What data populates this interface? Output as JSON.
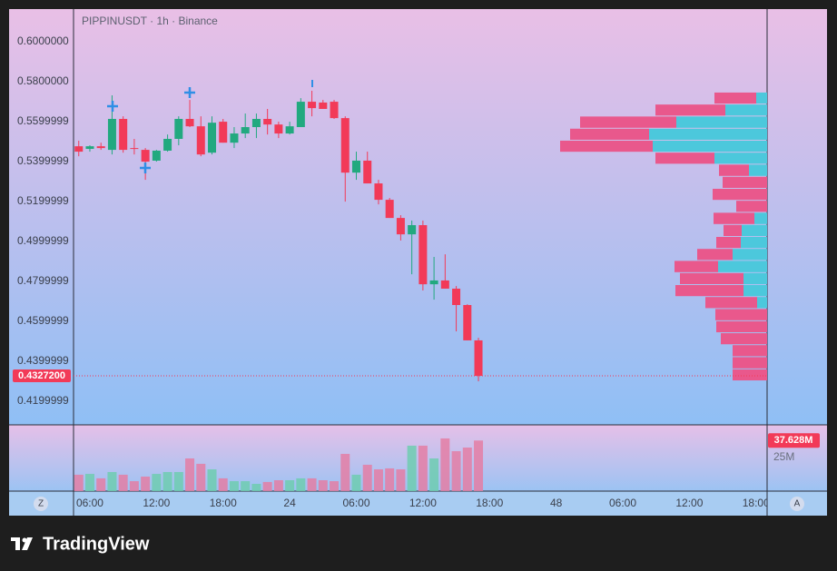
{
  "chart_data": {
    "type": "candlestick",
    "title": "PIPPINUSDT · 1h · Binance",
    "x": [
      5,
      6,
      7,
      8,
      9,
      10,
      11,
      12,
      13,
      14,
      15,
      16,
      17,
      18,
      19,
      20,
      21,
      22,
      23,
      24,
      25,
      26,
      27,
      28,
      29,
      30,
      31,
      32,
      33,
      34,
      35,
      36,
      37,
      38,
      39,
      40,
      41
    ],
    "open": [
      0.5477,
      0.5464,
      0.5477,
      0.5459,
      0.5614,
      0.5468,
      0.5459,
      0.5405,
      0.5455,
      0.5514,
      0.5614,
      0.5577,
      0.5445,
      0.56,
      0.5495,
      0.5541,
      0.5573,
      0.5614,
      0.5586,
      0.5541,
      0.5573,
      0.57,
      0.5696,
      0.57,
      0.5618,
      0.5345,
      0.5405,
      0.5291,
      0.5209,
      0.5118,
      0.5036,
      0.5082,
      0.4786,
      0.4805,
      0.4764,
      0.4682,
      0.4505
    ],
    "high": [
      0.5505,
      0.5482,
      0.5495,
      0.5732,
      0.5627,
      0.5514,
      0.5468,
      0.5459,
      0.5536,
      0.5627,
      0.5709,
      0.5627,
      0.5627,
      0.5614,
      0.5573,
      0.5641,
      0.5641,
      0.5664,
      0.56,
      0.56,
      0.5718,
      0.5755,
      0.5709,
      0.5709,
      0.5627,
      0.545,
      0.545,
      0.5309,
      0.5218,
      0.5132,
      0.5105,
      0.5105,
      0.4923,
      0.4936,
      0.4777,
      0.4686,
      0.4518
    ],
    "low": [
      0.5427,
      0.545,
      0.5459,
      0.5436,
      0.5445,
      0.5436,
      0.5309,
      0.54,
      0.545,
      0.5482,
      0.5573,
      0.5427,
      0.5436,
      0.5495,
      0.5468,
      0.5518,
      0.5518,
      0.5536,
      0.5518,
      0.5536,
      0.5573,
      0.5627,
      0.5664,
      0.5614,
      0.52,
      0.5309,
      0.5291,
      0.5186,
      0.5118,
      0.5005,
      0.4836,
      0.4755,
      0.4709,
      0.4764,
      0.455,
      0.4505,
      0.43
    ],
    "close": [
      0.545,
      0.5477,
      0.5468,
      0.5614,
      0.5459,
      0.5464,
      0.54,
      0.5455,
      0.5514,
      0.5614,
      0.5577,
      0.5436,
      0.5595,
      0.5495,
      0.5541,
      0.5573,
      0.5614,
      0.5586,
      0.5541,
      0.5577,
      0.57,
      0.5668,
      0.5664,
      0.5618,
      0.5345,
      0.5405,
      0.5291,
      0.5209,
      0.5118,
      0.5036,
      0.5082,
      0.4786,
      0.4805,
      0.4764,
      0.4682,
      0.4505,
      0.43272
    ],
    "colors": {
      "up": "#22a97f",
      "down": "#f23a58"
    },
    "xlim": [
      4.53,
      67.0
    ],
    "xticks": [
      {
        "value": 6,
        "label": "06:00"
      },
      {
        "value": 12,
        "label": "12:00"
      },
      {
        "value": 18,
        "label": "18:00"
      },
      24,
      {
        "value": 30,
        "label": "06:00"
      },
      {
        "value": 36,
        "label": "12:00"
      },
      {
        "value": 42,
        "label": "18:00"
      },
      48,
      {
        "value": 54,
        "label": "06:00"
      },
      {
        "value": 60,
        "label": "12:00"
      },
      {
        "value": 66,
        "label": "18:00"
      }
    ],
    "ylim": [
      0.4082,
      0.6164
    ],
    "yticks": [
      {
        "value": 0.6,
        "label": "0.6000000"
      },
      {
        "value": 0.58,
        "label": "0.5800000"
      },
      0.5599999,
      0.5399999,
      0.5199999,
      0.4999999,
      0.4799999,
      0.4599999,
      0.4399999,
      0.4199999
    ],
    "grid": false,
    "last_price": {
      "value": 0.43272,
      "label": "0.4327200"
    },
    "volume": {
      "values": [
        12.2,
        12.8,
        9.5,
        14.2,
        12.2,
        7.4,
        10.8,
        12.8,
        14.2,
        14.2,
        24.3,
        20.3,
        16.2,
        9.5,
        7.4,
        7.4,
        5.4,
        6.8,
        8.1,
        8.1,
        9.5,
        9.5,
        8.1,
        7.4,
        27.7,
        12.2,
        19.6,
        16.2,
        16.9,
        16.2,
        33.8,
        33.8,
        24.3,
        39.2,
        29.7,
        32.4,
        37.628
      ],
      "ylim": [
        0,
        49.3
      ],
      "yticks": [
        {
          "value": 25,
          "label": "25M"
        }
      ],
      "last": {
        "value": 37.628,
        "label": "37.628M"
      },
      "colors": {
        "up": "#6fcdb0",
        "down": "#e47ea5"
      }
    },
    "volume_profile": {
      "bins": [
        0.43,
        0.436,
        0.4421,
        0.4481,
        0.4541,
        0.4601,
        0.4662,
        0.4722,
        0.4782,
        0.4842,
        0.4903,
        0.4963,
        0.5023,
        0.5083,
        0.5144,
        0.5204,
        0.5264,
        0.5324,
        0.5385,
        0.5445,
        0.5505,
        0.5565,
        0.5626,
        0.5686,
        0.5746
      ],
      "down": [
        38,
        38,
        38,
        51,
        56,
        57,
        57,
        75,
        70,
        48,
        39,
        27,
        20,
        45,
        34,
        60,
        49,
        33,
        65,
        102,
        87,
        106,
        77,
        46
      ],
      "up": [
        0,
        0,
        0,
        0,
        0,
        0,
        11,
        26,
        26,
        54,
        38,
        29,
        28,
        14,
        0,
        0,
        0,
        20,
        58,
        126,
        130,
        100,
        46,
        12
      ],
      "colors": {
        "up": "#4cc8dc",
        "down": "#e9588c"
      }
    }
  },
  "controls": {
    "left": "Z",
    "right": "A"
  },
  "footer": {
    "logo": "TradingView"
  }
}
